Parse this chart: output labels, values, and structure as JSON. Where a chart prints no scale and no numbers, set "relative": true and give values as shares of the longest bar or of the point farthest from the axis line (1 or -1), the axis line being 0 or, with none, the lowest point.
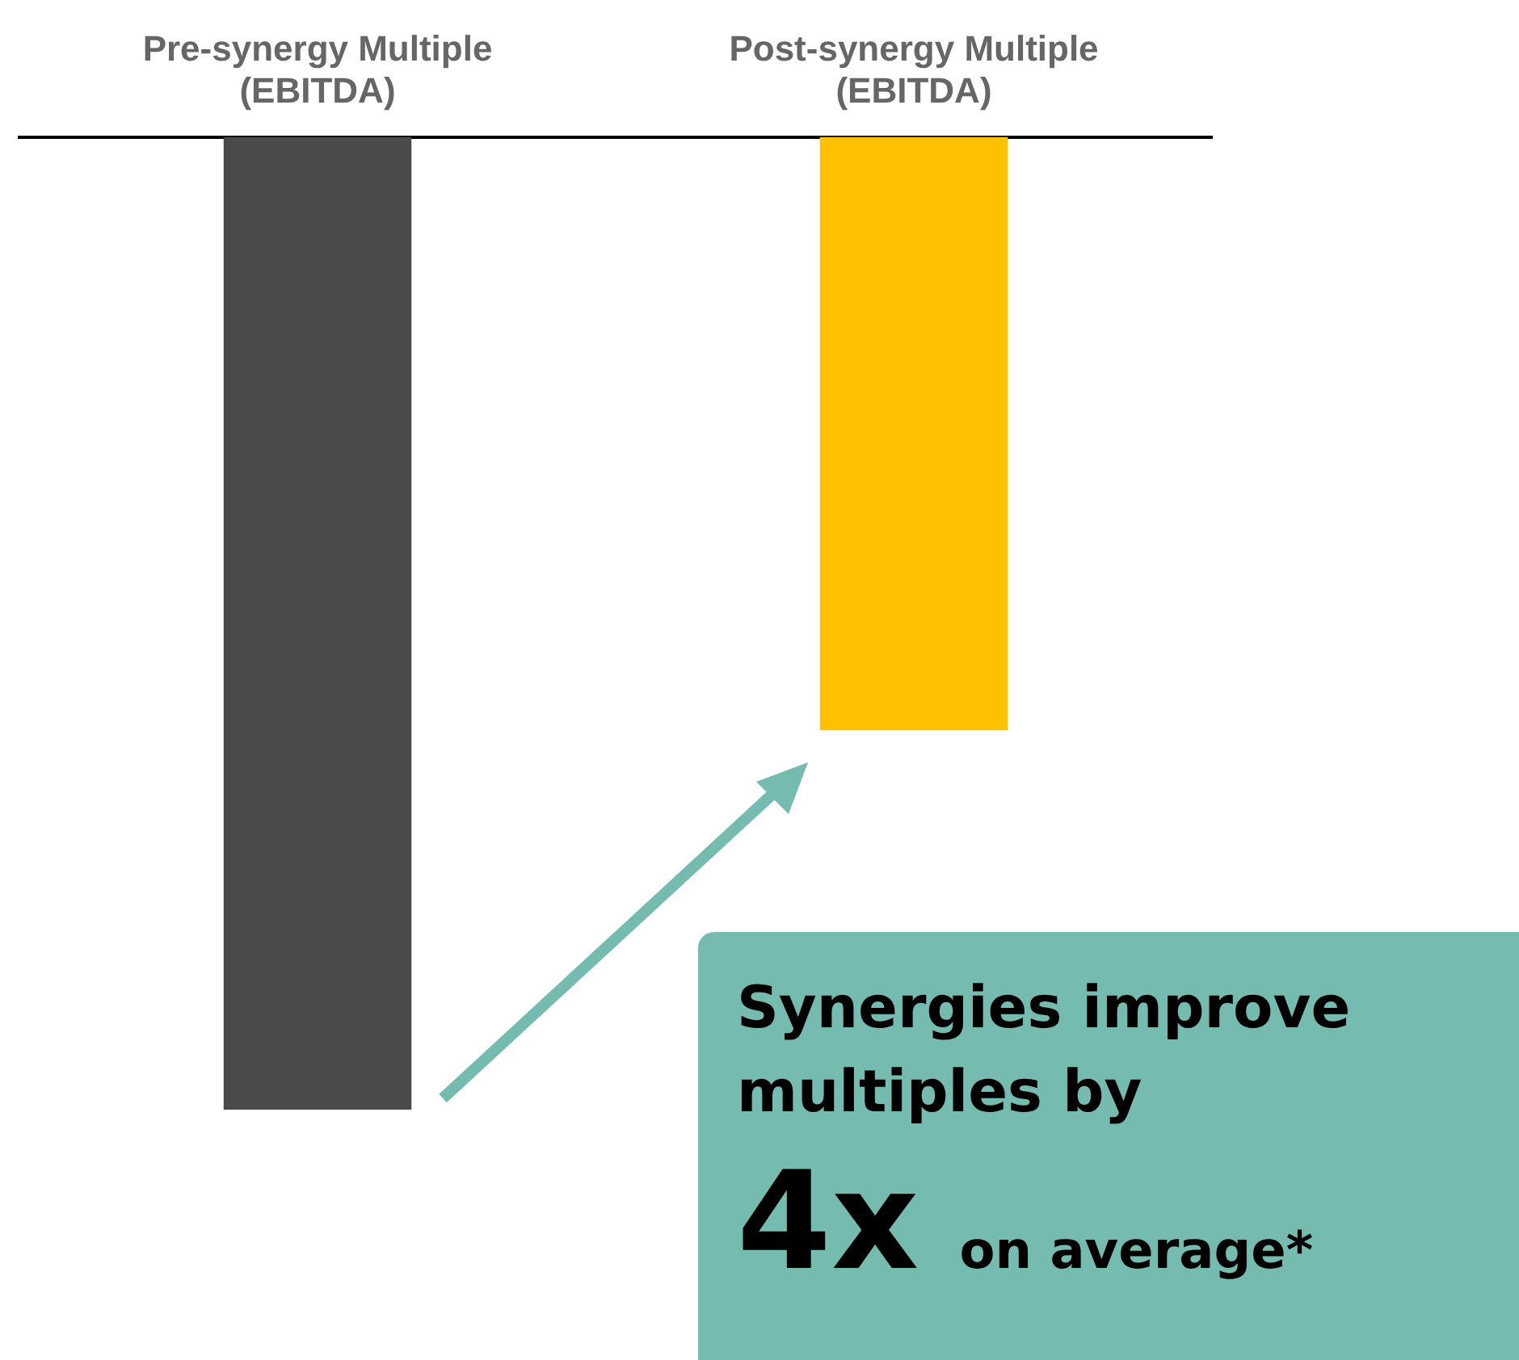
{
  "chart_data": {
    "type": "bar",
    "relative": true,
    "categories": [
      "Pre-synergy Multiple (EBITDA)",
      "Post-synergy Multiple (EBITDA)"
    ],
    "values": [
      -1,
      -0.61
    ],
    "colors": [
      "#4a4a4a",
      "#ffc000"
    ],
    "legend": false,
    "annotations": [
      "Synergies improve multiples by",
      "4x on average*"
    ]
  }
}
